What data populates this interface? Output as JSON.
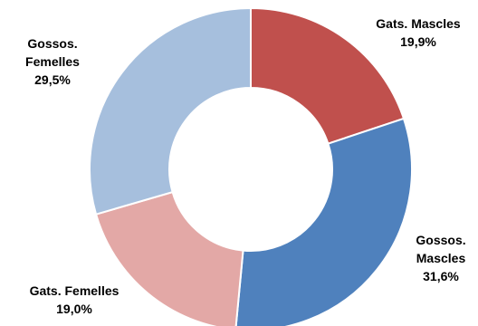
{
  "chart_data": {
    "type": "pie",
    "style": "donut",
    "start_angle": "top (12 o'clock), clockwise",
    "slices": [
      {
        "label": "Gats. Mascles",
        "value": 19.9,
        "value_text": "19,9%",
        "color": "#C0504D"
      },
      {
        "label": "Gossos. Mascles",
        "value": 31.6,
        "value_text": "31,6%",
        "color": "#4F81BD"
      },
      {
        "label": "Gats. Femelles",
        "value": 19.0,
        "value_text": "19,0%",
        "color": "#E3A8A6"
      },
      {
        "label": "Gossos. Femelles",
        "value": 29.5,
        "value_text": "29,5%",
        "color": "#A6BFDD"
      }
    ]
  }
}
